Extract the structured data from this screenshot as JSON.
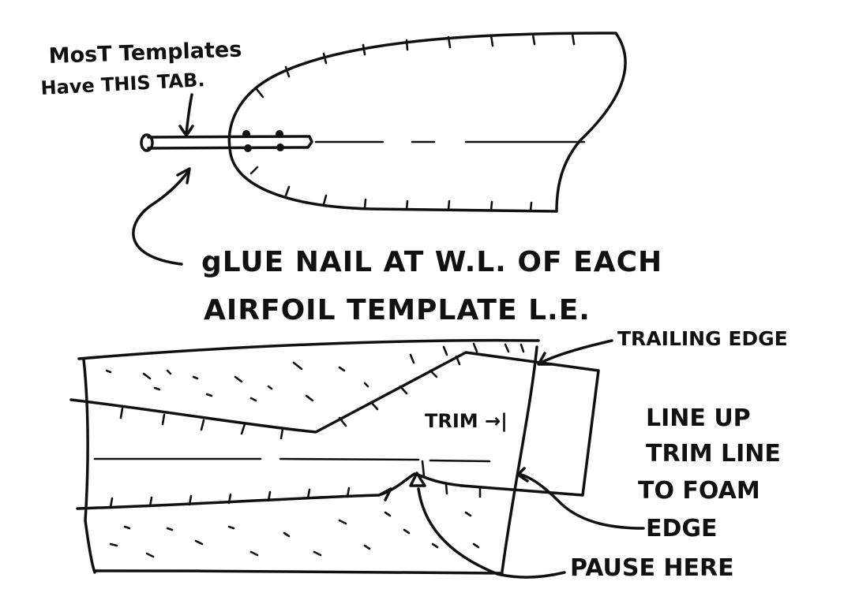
{
  "labels": {
    "most_templates_line1": "MosT Templates",
    "most_templates_line2": "Have THIS TAB.",
    "glue_line1": "gLUE NAIL AT W.L. OF EACH",
    "glue_line2": "AIRFOIL TEMPLATE L.E.",
    "trailing_edge": "TRAILING EDGE",
    "trim": "TRIM →|",
    "line_up_1": "LINE UP",
    "line_up_2": "TRIM LINE",
    "line_up_3": "TO FOAM",
    "line_up_4": "EDGE",
    "pause_here": "PAUSE HERE"
  }
}
